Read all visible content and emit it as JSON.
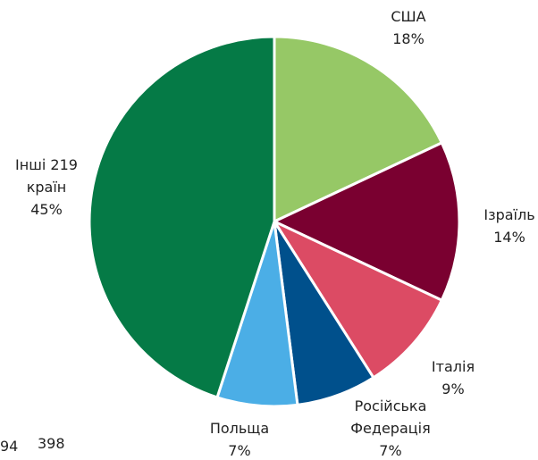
{
  "chart_data": {
    "type": "pie",
    "categories": [
      "США",
      "Ізраїль",
      "Італія",
      "Російська Федерація",
      "Польща",
      "Інші 219 країн"
    ],
    "values": [
      18,
      14,
      9,
      7,
      7,
      45
    ],
    "value_labels": [
      "18%",
      "14%",
      "9%",
      "7%",
      "7%",
      "45%"
    ],
    "colors": [
      "#96c866",
      "#7a0030",
      "#dc4b64",
      "#00508c",
      "#4baee6",
      "#057a46"
    ],
    "annotations": [
      "94",
      "398"
    ]
  }
}
